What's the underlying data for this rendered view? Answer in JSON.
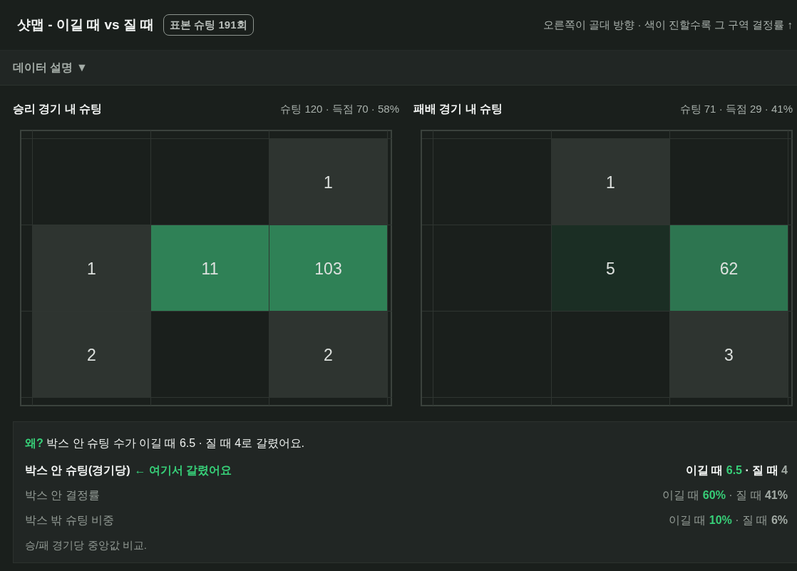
{
  "chart_data": [
    {
      "type": "other",
      "title": "샷맵 - 이길 때 vs 질 때",
      "subtitle": "표본 슈팅 191회",
      "annotations": [
        "오른쪽이 골대 방향 · 색이 진할수록 그 구역 결정률 ↑",
        "데이터 설명 ▼"
      ]
    },
    {
      "type": "other",
      "title": "승리 경기 내 슈팅",
      "subtitle": "슈팅 120 · 득점 70 · 58%",
      "categories": [
        null,
        null,
        null,
        null,
        null,
        null,
        null,
        null,
        null
      ],
      "values": [
        null,
        null,
        1,
        1,
        11,
        103,
        2,
        null,
        2
      ],
      "colors": [
        null,
        null,
        "#2e3430",
        "#2e3430",
        "#2f8156",
        "#2f8156",
        "#2e3430",
        null,
        "#2e3430"
      ],
      "data_labels": true
    },
    {
      "type": "other",
      "title": "패배 경기 내 슈팅",
      "subtitle": "슈팅 71 · 득점 29 · 41%",
      "categories": [
        null,
        null,
        null,
        null,
        null,
        null,
        null,
        null,
        null
      ],
      "values": [
        null,
        1,
        null,
        null,
        5,
        62,
        null,
        null,
        3
      ],
      "colors": [
        null,
        "#2e3430",
        null,
        null,
        "#1b2e24",
        "#2d7550",
        null,
        null,
        "#2e3430"
      ],
      "data_labels": true
    },
    {
      "type": "other",
      "annotations": [
        "왜? 박스 안 슈팅 수가 이길 때 6.5 · 질 때 4로 갈렸어요.",
        "박스 안 슈팅(경기당)",
        "← 여기서 갈렸어요",
        "이길 때 6.5 · 질 때 4",
        "박스 안 결정률",
        "이길 때 60% · 질 때 41%",
        "박스 밖 슈팅 비중",
        "이길 때 10% · 질 때 6%",
        "승/패 경기당 중앙값 비교."
      ]
    }
  ]
}
